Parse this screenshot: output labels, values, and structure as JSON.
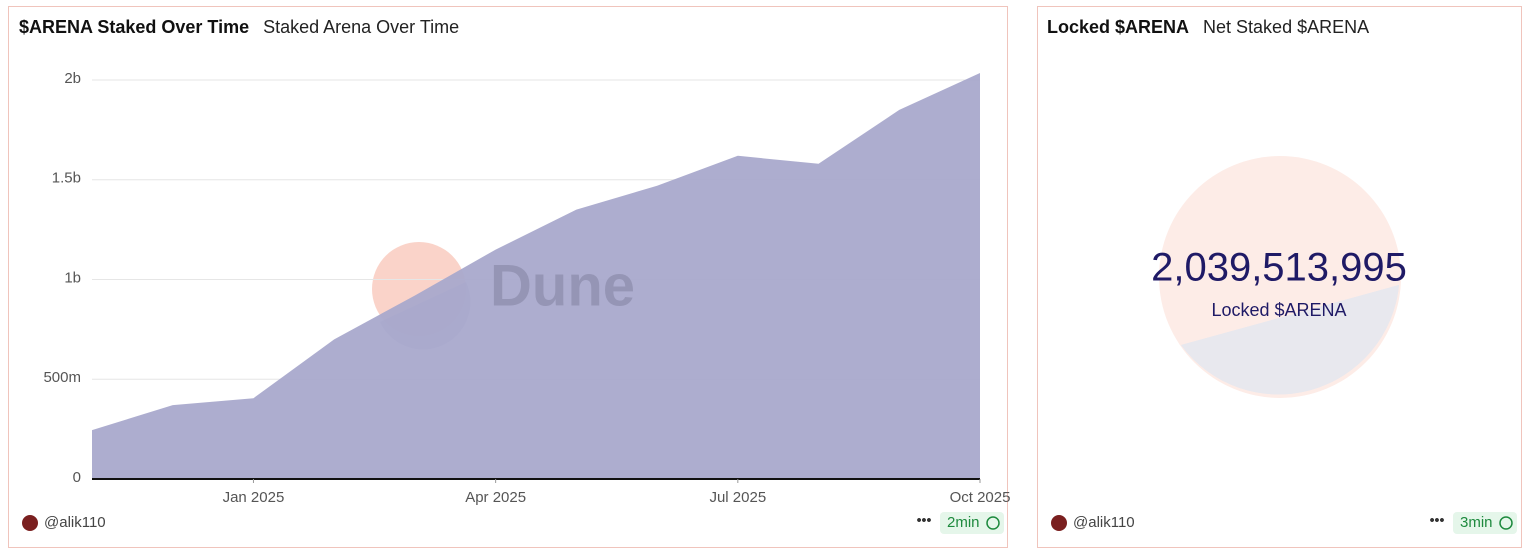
{
  "chart_data": [
    {
      "type": "area",
      "title": "$ARENA Staked Over Time",
      "subtitle": "Staked Arena Over Time",
      "x": [
        "2024-11",
        "2024-12",
        "2025-01",
        "2025-02",
        "2025-03",
        "2025-04",
        "2025-05",
        "2025-06",
        "2025-07",
        "2025-08",
        "2025-09",
        "2025-10"
      ],
      "values": [
        245000000,
        370000000,
        405000000,
        700000000,
        920000000,
        1150000000,
        1350000000,
        1470000000,
        1620000000,
        1580000000,
        1850000000,
        2035000000
      ],
      "color": "#a9a9cc",
      "xlim": [
        "2024-11",
        "2025-10"
      ],
      "xticks": [
        {
          "value": "2025-01",
          "label": "Jan 2025"
        },
        {
          "value": "2025-04",
          "label": "Apr 2025"
        },
        {
          "value": "2025-07",
          "label": "Jul 2025"
        },
        {
          "value": "2025-10",
          "label": "Oct 2025"
        }
      ],
      "ylim": [
        0,
        2000000000
      ],
      "yticks": [
        0,
        {
          "value": 500000000,
          "label": "500m"
        },
        {
          "value": 1000000000,
          "label": "1b"
        },
        {
          "value": 1500000000,
          "label": "1.5b"
        },
        {
          "value": 2000000000,
          "label": "2b"
        }
      ],
      "grid": true,
      "watermark": "Dune",
      "author": "@alik110",
      "updated": "2min"
    },
    {
      "type": "counter",
      "title": "Locked $ARENA",
      "subtitle": "Net Staked $ARENA",
      "values": [
        2039513995
      ],
      "value_labels": [
        "2,039,513,995"
      ],
      "label": "Locked $ARENA",
      "color": "#1f1a66",
      "author": "@alik110",
      "updated": "3min"
    }
  ]
}
